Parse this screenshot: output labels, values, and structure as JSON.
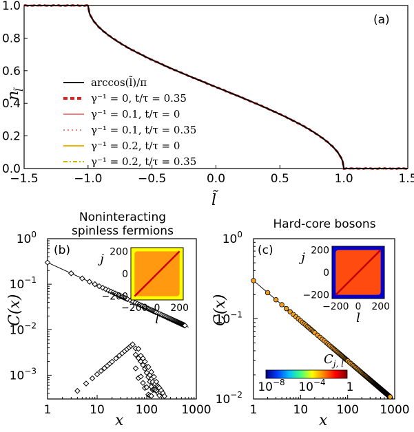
{
  "chart_data": [
    {
      "type": "line",
      "panel_label": "(a)",
      "xlabel": "l̃",
      "ylabel": "n",
      "ylabel_sub": "l̃",
      "xlim": [
        -1.5,
        1.5
      ],
      "ylim": [
        0.0,
        1.0
      ],
      "xticks": [
        "−1.5",
        "−1.0",
        "−0.5",
        "0.0",
        "0.5",
        "1.0",
        "1.5"
      ],
      "yticks": [
        "0.0",
        "0.2",
        "0.4",
        "0.6",
        "0.8",
        "1.0"
      ],
      "series": [
        {
          "name": "arccos(l̃)/π",
          "color": "#000000",
          "style": "solid",
          "function": "arccos(x)/pi"
        },
        {
          "name": "γ⁻¹ = 0,    t/τ = 0.35",
          "color": "#e02020",
          "style": "dashed-thick",
          "function": "arccos(x)/pi"
        },
        {
          "name": "γ⁻¹ = 0.1,  t/τ = 0",
          "color": "#f08080",
          "style": "solid",
          "function": "arccos(x)/pi"
        },
        {
          "name": "γ⁻¹ = 0.1,  t/τ = 0.35",
          "color": "#f08080",
          "style": "dotted",
          "function": "arccos(x)/pi"
        },
        {
          "name": "γ⁻¹ = 0.2,  t/τ = 0",
          "color": "#f0b400",
          "style": "solid",
          "function": "arccos(x)/pi"
        },
        {
          "name": "γ⁻¹ = 0.2,  t/τ = 0.35",
          "color": "#d4b000",
          "style": "dashdot",
          "function": "arccos(x)/pi"
        }
      ],
      "legend_position": "left"
    },
    {
      "type": "scatter",
      "panel_label": "(b)",
      "title_line1": "Noninteracting",
      "title_line2": "spinless fermions",
      "xlabel": "x",
      "ylabel": "C(x)",
      "xscale": "log",
      "yscale": "log",
      "xlim": [
        1,
        1000
      ],
      "ylim": [
        0.0003,
        1.0
      ],
      "xticks": [
        "1",
        "10",
        "100",
        "1000"
      ],
      "yticks": [
        "10",
        "10",
        "10",
        "10"
      ],
      "ytick_exps": [
        "0",
        "−1",
        "−2",
        "−3"
      ],
      "marker": "open-diamond",
      "marker_color": "#000000",
      "fit_line": {
        "C0": 0.3,
        "exponent": -0.5
      },
      "upper_branch": {
        "C0": 0.3,
        "exponent": -0.5,
        "x_range": [
          1,
          700
        ]
      },
      "lower_branch": {
        "peak_x": 55,
        "peak_y": 0.005,
        "start_x": 3.5,
        "start_y": 0.0004,
        "decay_exponent": -2
      },
      "inset": {
        "xlabel": "l",
        "ylabel": "j",
        "xticks": [
          "−200",
          "0",
          "200"
        ],
        "yticks": [
          "200",
          "0",
          "−200"
        ],
        "background": "#ffff00",
        "fill": "#ff9a10",
        "diagonal": "#cc0000"
      }
    },
    {
      "type": "scatter",
      "panel_label": "(c)",
      "title": "Hard-core bosons",
      "xlabel": "x",
      "ylabel": "C(x)",
      "xscale": "log",
      "yscale": "log",
      "xlim": [
        1,
        1000
      ],
      "ylim": [
        0.01,
        1.0
      ],
      "xticks": [
        "1",
        "10",
        "100",
        "1000"
      ],
      "yticks": [
        "10",
        "10",
        "10"
      ],
      "ytick_exps": [
        "0",
        "−1",
        "−2"
      ],
      "marker": "filled-circle",
      "marker_color": "#f0a020",
      "fit_line": {
        "C0": 0.3,
        "exponent": -0.5
      },
      "inset": {
        "xlabel": "l",
        "ylabel": "j",
        "xticks": [
          "−200",
          "0",
          "200"
        ],
        "yticks": [
          "200",
          "0",
          "−200"
        ],
        "background": "#0000d0",
        "fill": "#ff4a10",
        "diagonal": "#c00000"
      },
      "colorbar": {
        "label": "C",
        "label_sub": "j, l",
        "ticks": [
          "10",
          "10",
          "1"
        ],
        "tick_exps": [
          "−8",
          "−4",
          ""
        ],
        "colors": [
          "#000080",
          "#0040ff",
          "#00c0ff",
          "#40ff80",
          "#ffff00",
          "#ff8000",
          "#ff0000",
          "#800000"
        ]
      }
    }
  ]
}
